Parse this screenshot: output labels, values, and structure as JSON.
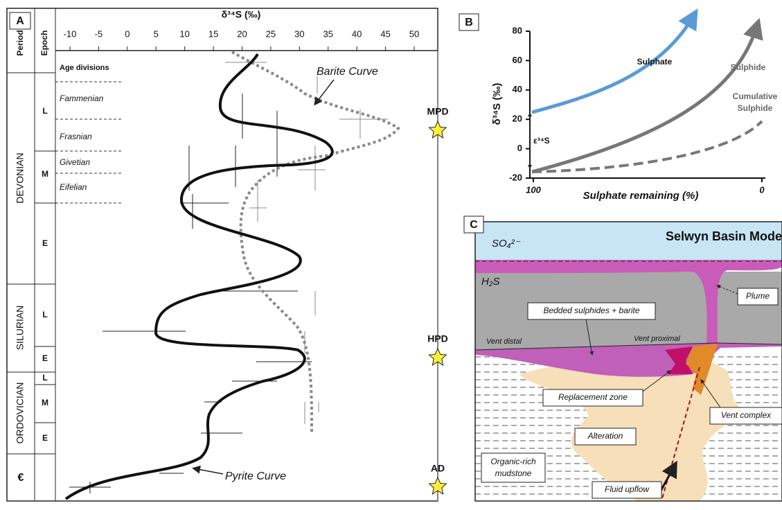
{
  "panel_a": {
    "label": "A",
    "axis_title": "δ³⁴S (‰)",
    "xticks": [
      -10,
      -5,
      0,
      5,
      10,
      15,
      20,
      25,
      30,
      35,
      40,
      45,
      50
    ],
    "period_header": "Period",
    "epoch_header": "Epoch",
    "periods": [
      "DEVONIAN",
      "SILURIAN",
      "ORDOVICIAN",
      "€"
    ],
    "epochs": [
      "L",
      "M",
      "E",
      "L",
      "E",
      "L",
      "M",
      "E"
    ],
    "ages": [
      "Age divisions",
      "Fammenian",
      "Frasnian",
      "Givetian",
      "Eifelian"
    ],
    "events": [
      "MPD",
      "HPD",
      "AD"
    ],
    "annotations": [
      "Barite Curve",
      "Pyrite Curve"
    ]
  },
  "panel_b": {
    "label": "B",
    "y_axis_title": "δ³⁴S (‰)",
    "x_axis_title": "Sulphate remaining (%)",
    "yticks": [
      80,
      60,
      40,
      20,
      0,
      -20
    ],
    "xticks": [
      100,
      0
    ],
    "sulphate_label": "Sulphate",
    "sulphide_label": "Sulphide",
    "cumulative_label": [
      "Cumulative",
      "Sulphide"
    ],
    "fractionation_label": "ε³⁴S"
  },
  "panel_c": {
    "label": "C",
    "title": "Selwyn Basin Mode",
    "sulphate": "SO₄²⁻",
    "h2s": "H₂S",
    "plume": "Plume",
    "bedded": "Bedded sulphides + barite",
    "vent_distal": "Vent distal",
    "vent_proximal": "Vent proximal",
    "replacement": "Replacement zone",
    "vent_complex": "Vent complex",
    "alteration": "Alteration",
    "mudstone": [
      "Organic-rich",
      "mudstone"
    ],
    "upflow": "Fluid upflow"
  }
}
